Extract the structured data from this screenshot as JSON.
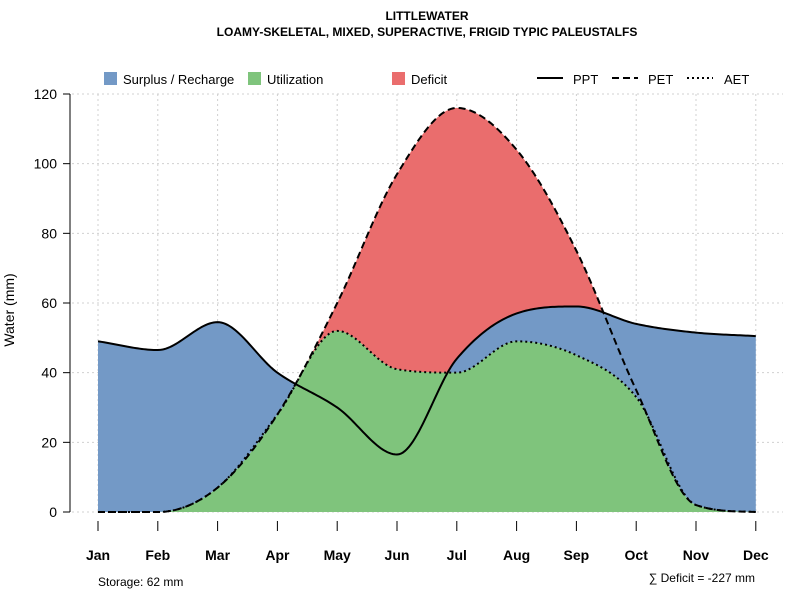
{
  "chart_data": {
    "type": "area",
    "title": "LITTLEWATER",
    "subtitle": "LOAMY-SKELETAL, MIXED, SUPERACTIVE, FRIGID TYPIC PALEUSTALFS",
    "ylabel": "Water (mm)",
    "xlabel": "",
    "ylim": [
      0,
      120
    ],
    "yticks": [
      0,
      20,
      40,
      60,
      80,
      100,
      120
    ],
    "categories": [
      "Jan",
      "Feb",
      "Mar",
      "Apr",
      "May",
      "Jun",
      "Jul",
      "Aug",
      "Sep",
      "Oct",
      "Nov",
      "Dec"
    ],
    "series": [
      {
        "name": "PPT",
        "style": "solid",
        "values": [
          49,
          46.5,
          54.5,
          40,
          30,
          16.5,
          44,
          57,
          59,
          54,
          51.5,
          50.5
        ]
      },
      {
        "name": "PET",
        "style": "dashed",
        "values": [
          0,
          0,
          7,
          28,
          60,
          97,
          116,
          104,
          75,
          35,
          2,
          0
        ]
      },
      {
        "name": "AET",
        "style": "dotted",
        "values": [
          0,
          0,
          7,
          28,
          52,
          41,
          40,
          49,
          45,
          33,
          2,
          0
        ]
      }
    ],
    "areas": [
      {
        "name": "Surplus / Recharge",
        "color": "#7399c6"
      },
      {
        "name": "Utilization",
        "color": "#7fc47c"
      },
      {
        "name": "Deficit",
        "color": "#ea6d6d"
      }
    ],
    "grid": true,
    "legend": "top",
    "annotations": {
      "storage": "Storage: 62 mm",
      "deficit": "∑ Deficit = -227 mm"
    }
  }
}
